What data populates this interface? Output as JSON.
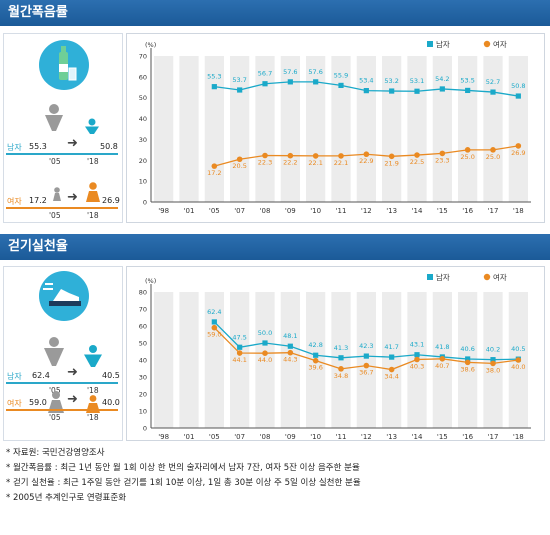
{
  "sections": [
    {
      "title": "월간폭음률",
      "male_label": "남자",
      "female_label": "여자",
      "male_from": "55.3",
      "male_to": "50.8",
      "female_from": "17.2",
      "female_to": "26.9",
      "year_from": "'05",
      "year_to": "'18"
    },
    {
      "title": "걷기실천율",
      "male_label": "남자",
      "female_label": "여자",
      "male_from": "62.4",
      "male_to": "40.5",
      "female_from": "59.0",
      "female_to": "40.0",
      "year_from": "'05",
      "year_to": "'18"
    }
  ],
  "notes": [
    "* 자료원: 국민건강영양조사",
    "* 월간폭음률 : 최근 1년 동안 월 1회 이상 한 번의 술자리에서 남자 7잔, 여자 5잔 이상 음주한 분율",
    "* 걷기 실천율 : 최근 1주일 동안 걷기를 1회 10분 이상, 1일 총 30분 이상 주 5일 이상 실천한 분율",
    "* 2005년 추계인구로 연령표준화"
  ],
  "colors": {
    "male": "#1aa9c9",
    "female": "#ea8a22",
    "header": "#1f5f9f",
    "band": "#ececec"
  },
  "chart_data": [
    {
      "type": "line",
      "title": "월간폭음률",
      "ylabel": "(%)",
      "ylim": [
        0,
        70
      ],
      "yticks": [
        0,
        10,
        20,
        30,
        40,
        50,
        60,
        70
      ],
      "x": [
        "'98",
        "'01",
        "'05",
        "'07",
        "'08",
        "'09",
        "'10",
        "'11",
        "'12",
        "'13",
        "'14",
        "'15",
        "'16",
        "'17",
        "'18"
      ],
      "series": [
        {
          "name": "남자",
          "values": [
            null,
            null,
            55.3,
            53.7,
            56.7,
            57.6,
            57.6,
            55.9,
            53.4,
            53.2,
            53.1,
            54.2,
            53.5,
            52.7,
            50.8
          ]
        },
        {
          "name": "여자",
          "values": [
            null,
            null,
            17.2,
            20.5,
            22.3,
            22.2,
            22.1,
            22.1,
            22.9,
            21.9,
            22.5,
            23.3,
            25.0,
            25.0,
            26.9
          ]
        }
      ],
      "legend": "top-right",
      "grid": false
    },
    {
      "type": "line",
      "title": "걷기실천율",
      "ylabel": "(%)",
      "ylim": [
        0,
        80
      ],
      "yticks": [
        0,
        10,
        20,
        30,
        40,
        50,
        60,
        70,
        80
      ],
      "x": [
        "'98",
        "'01",
        "'05",
        "'07",
        "'08",
        "'09",
        "'10",
        "'11",
        "'12",
        "'13",
        "'14",
        "'15",
        "'16",
        "'17",
        "'18"
      ],
      "series": [
        {
          "name": "남자",
          "values": [
            null,
            null,
            62.4,
            47.5,
            50.0,
            48.1,
            42.8,
            41.3,
            42.3,
            41.7,
            43.1,
            41.8,
            40.6,
            40.2,
            40.5
          ]
        },
        {
          "name": "여자",
          "values": [
            null,
            null,
            59.0,
            44.1,
            44.0,
            44.3,
            39.6,
            34.8,
            36.7,
            34.4,
            40.3,
            40.7,
            38.6,
            38.0,
            40.0
          ]
        }
      ],
      "legend": "top-right",
      "grid": false
    }
  ]
}
